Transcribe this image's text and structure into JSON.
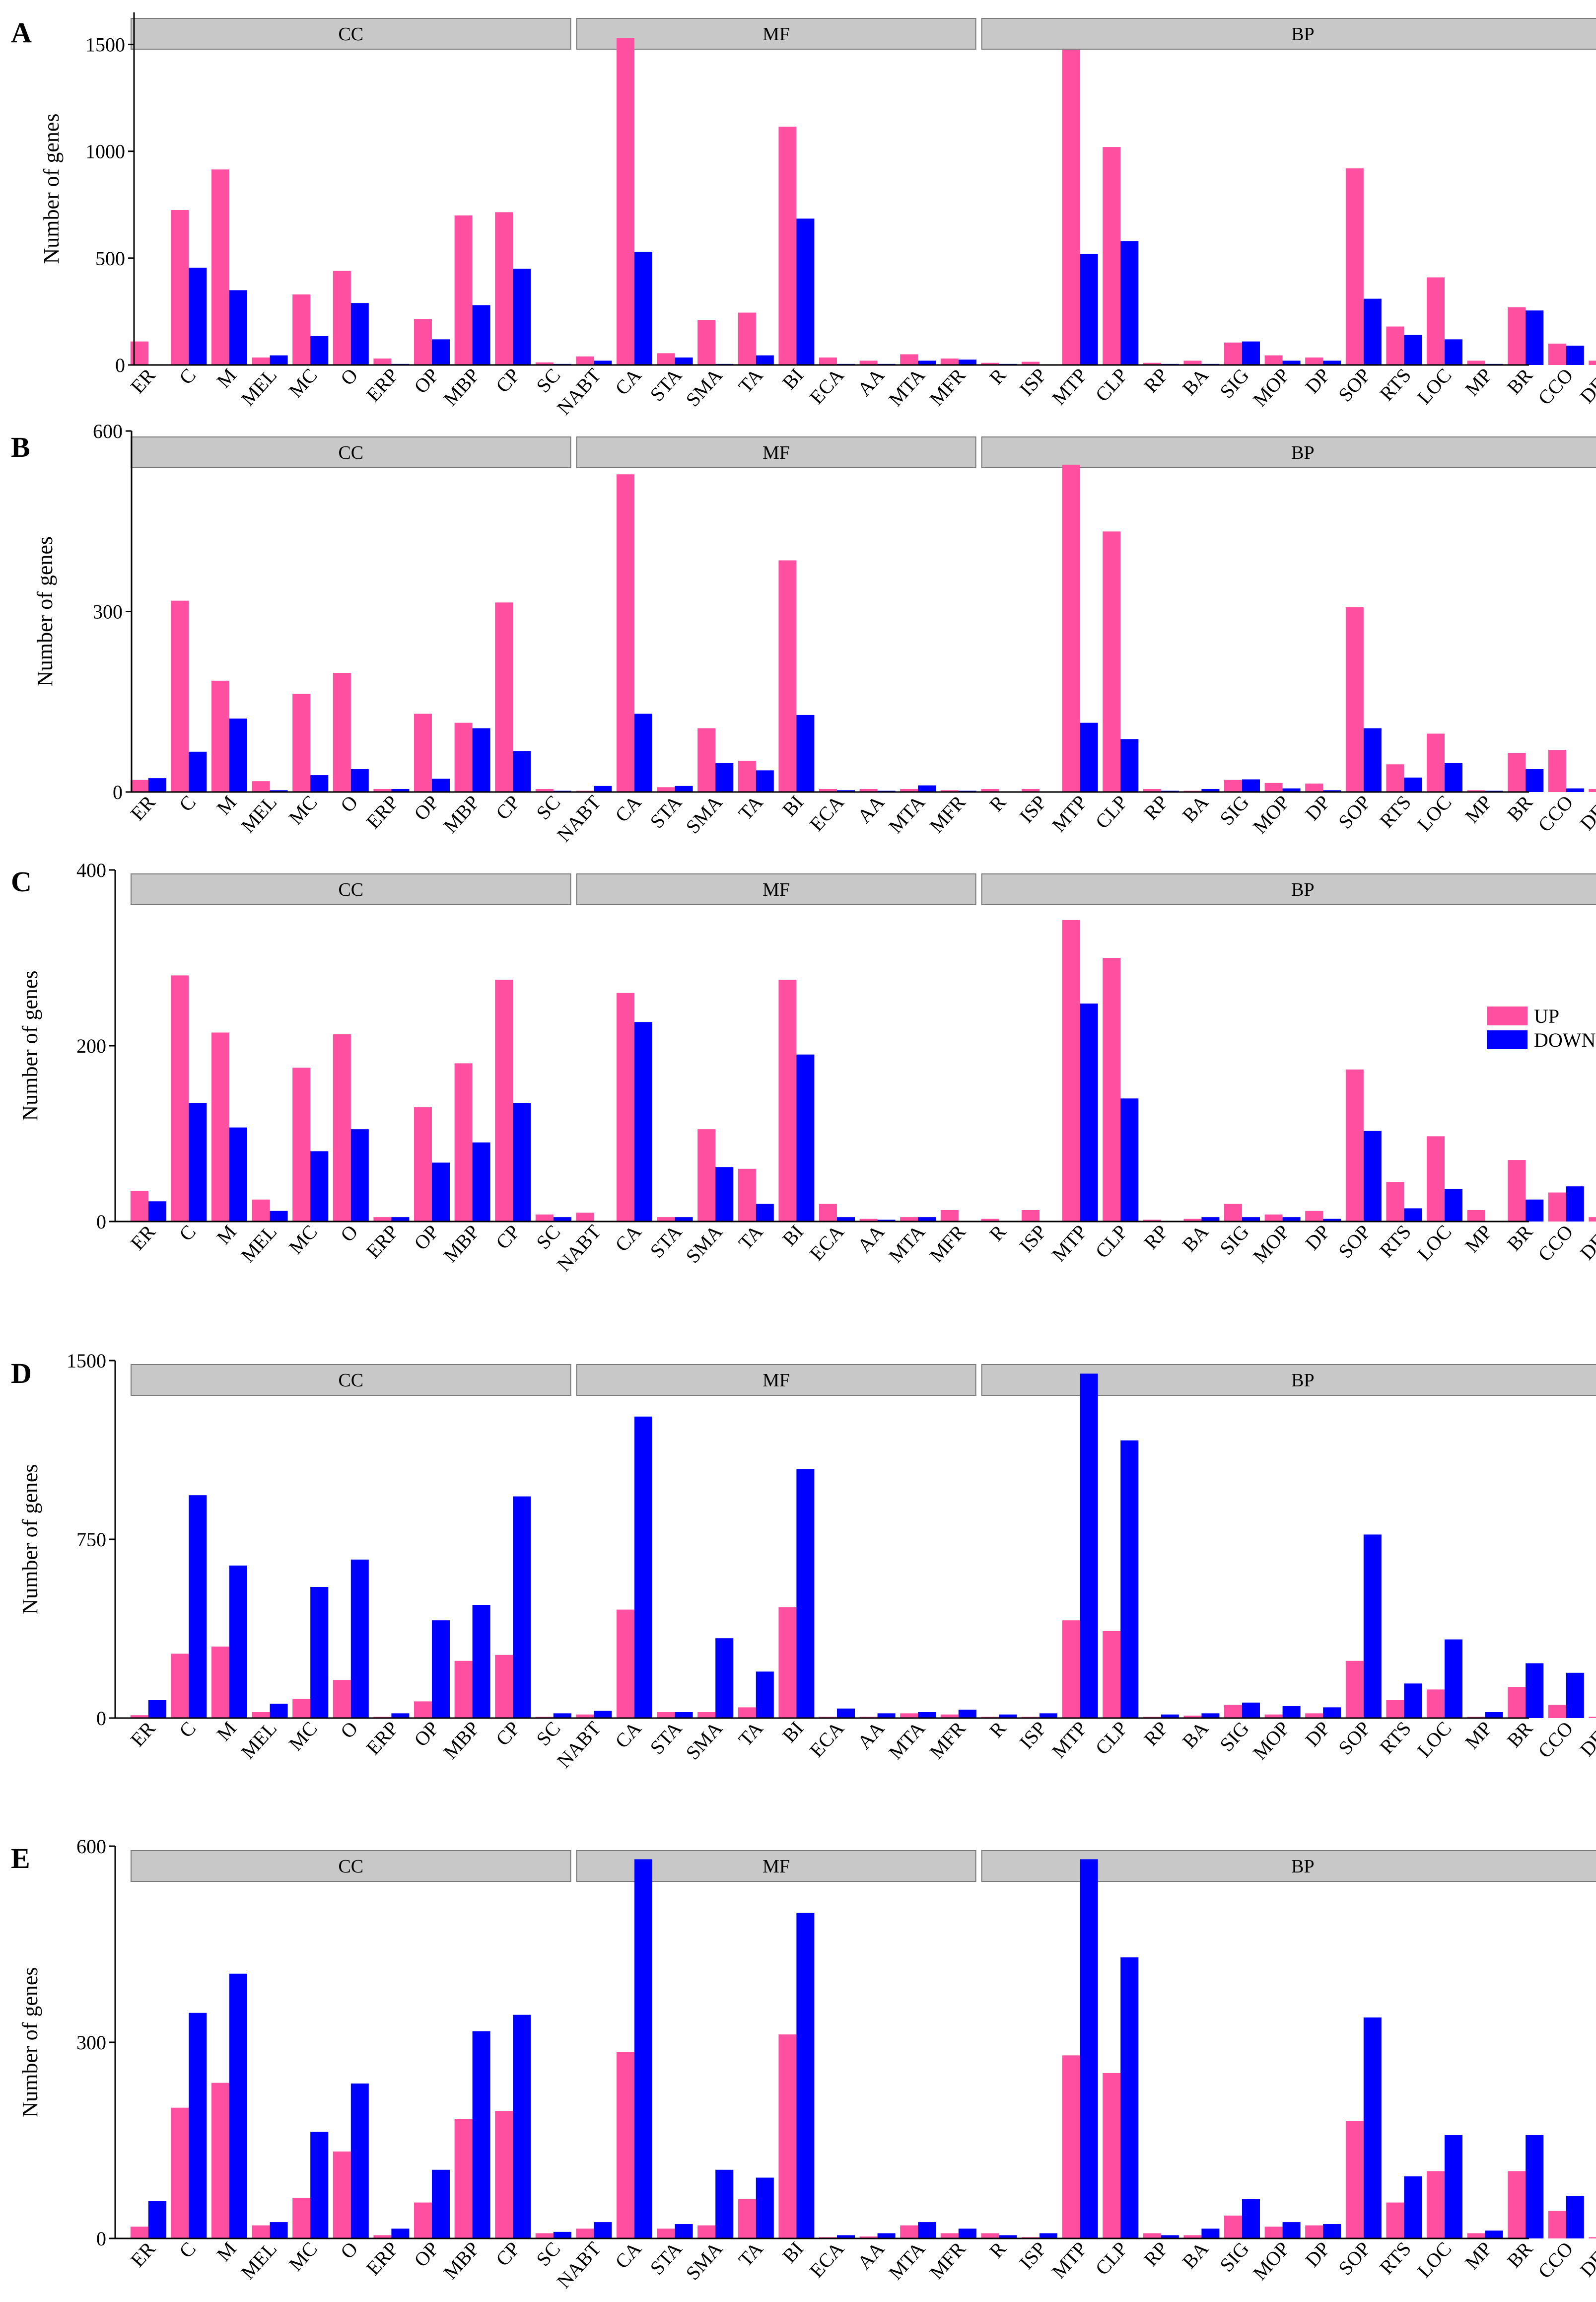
{
  "figure": {
    "ylabel": "Number of genes",
    "legend": {
      "up_label": "UP",
      "down_label": "DOWN",
      "placement": "right of panel C"
    },
    "colors": {
      "up": "#ff4fa0",
      "down": "#0000ff",
      "group_box": "#c8c8c8"
    },
    "groups": [
      {
        "name": "CC",
        "first": "ER",
        "last": "SC"
      },
      {
        "name": "MF",
        "first": "NABT",
        "last": "MFR"
      },
      {
        "name": "BP",
        "first": "R",
        "last": "DET"
      }
    ]
  },
  "chart_data": [
    {
      "type": "bar",
      "panel": "A",
      "ylim": [
        0,
        1650
      ],
      "yticks": [
        0,
        500,
        1000,
        1500
      ],
      "categories": [
        "ER",
        "C",
        "M",
        "MEL",
        "MC",
        "O",
        "ERP",
        "OP",
        "MBP",
        "CP",
        "SC",
        "NABT",
        "CA",
        "STA",
        "SMA",
        "TA",
        "BI",
        "ECA",
        "AA",
        "MTA",
        "MFR",
        "R",
        "ISP",
        "MTP",
        "CLP",
        "RP",
        "BA",
        "SIG",
        "MOP",
        "DP",
        "SOP",
        "RTS",
        "LOC",
        "MP",
        "BR",
        "CCO",
        "DET"
      ],
      "series": [
        {
          "name": "UP",
          "values": [
            110,
            725,
            915,
            35,
            330,
            440,
            30,
            215,
            700,
            715,
            12,
            40,
            1530,
            55,
            210,
            245,
            1115,
            35,
            20,
            50,
            30,
            10,
            15,
            1475,
            1020,
            10,
            20,
            105,
            45,
            35,
            920,
            180,
            410,
            20,
            270,
            100,
            20
          ]
        },
        {
          "name": "DOWN",
          "values": [
            0,
            455,
            350,
            45,
            135,
            290,
            5,
            120,
            280,
            450,
            5,
            20,
            530,
            35,
            5,
            45,
            685,
            5,
            5,
            20,
            25,
            5,
            0,
            520,
            580,
            5,
            5,
            110,
            20,
            20,
            310,
            140,
            120,
            5,
            255,
            90,
            5
          ]
        }
      ]
    },
    {
      "type": "bar",
      "panel": "B",
      "ylim": [
        0,
        600
      ],
      "yticks": [
        0,
        300,
        600
      ],
      "categories": [
        "ER",
        "C",
        "M",
        "MEL",
        "MC",
        "O",
        "ERP",
        "OP",
        "MBP",
        "CP",
        "SC",
        "NABT",
        "CA",
        "STA",
        "SMA",
        "TA",
        "BI",
        "ECA",
        "AA",
        "MTA",
        "MFR",
        "R",
        "ISP",
        "MTP",
        "CLP",
        "RP",
        "BA",
        "SIG",
        "MOP",
        "DP",
        "SOP",
        "RTS",
        "LOC",
        "MP",
        "BR",
        "CCO",
        "DET"
      ],
      "series": [
        {
          "name": "UP",
          "values": [
            20,
            318,
            185,
            18,
            163,
            198,
            5,
            130,
            115,
            315,
            5,
            2,
            528,
            8,
            106,
            52,
            385,
            5,
            5,
            5,
            3,
            5,
            5,
            544,
            433,
            5,
            2,
            20,
            15,
            14,
            307,
            46,
            97,
            3,
            65,
            70,
            5
          ]
        },
        {
          "name": "DOWN",
          "values": [
            23,
            67,
            122,
            3,
            28,
            38,
            5,
            22,
            106,
            68,
            2,
            10,
            130,
            10,
            48,
            36,
            128,
            3,
            2,
            11,
            2,
            0,
            0,
            115,
            88,
            2,
            5,
            21,
            6,
            3,
            106,
            24,
            48,
            2,
            38,
            6,
            3
          ]
        }
      ]
    },
    {
      "type": "bar",
      "panel": "C",
      "ylim": [
        0,
        400
      ],
      "yticks": [
        0,
        200,
        400
      ],
      "categories": [
        "ER",
        "C",
        "M",
        "MEL",
        "MC",
        "O",
        "ERP",
        "OP",
        "MBP",
        "CP",
        "SC",
        "NABT",
        "CA",
        "STA",
        "SMA",
        "TA",
        "BI",
        "ECA",
        "AA",
        "MTA",
        "MFR",
        "R",
        "ISP",
        "MTP",
        "CLP",
        "RP",
        "BA",
        "SIG",
        "MOP",
        "DP",
        "SOP",
        "RTS",
        "LOC",
        "MP",
        "BR",
        "CCO",
        "DET"
      ],
      "series": [
        {
          "name": "UP",
          "values": [
            35,
            280,
            215,
            25,
            175,
            213,
            5,
            130,
            180,
            275,
            8,
            10,
            260,
            5,
            105,
            60,
            275,
            20,
            3,
            5,
            13,
            3,
            13,
            343,
            300,
            2,
            3,
            20,
            8,
            12,
            173,
            45,
            97,
            13,
            70,
            33,
            5
          ]
        },
        {
          "name": "DOWN",
          "values": [
            23,
            135,
            107,
            12,
            80,
            105,
            5,
            67,
            90,
            135,
            5,
            0,
            227,
            5,
            62,
            20,
            190,
            5,
            2,
            5,
            0,
            0,
            0,
            248,
            140,
            0,
            5,
            5,
            5,
            3,
            103,
            15,
            37,
            0,
            25,
            40,
            2
          ]
        }
      ]
    },
    {
      "type": "bar",
      "panel": "D",
      "ylim": [
        0,
        1500
      ],
      "yticks": [
        0,
        750,
        1500
      ],
      "categories": [
        "ER",
        "C",
        "M",
        "MEL",
        "MC",
        "O",
        "ERP",
        "OP",
        "MBP",
        "CP",
        "SC",
        "NABT",
        "CA",
        "STA",
        "SMA",
        "TA",
        "BI",
        "ECA",
        "AA",
        "MTA",
        "MFR",
        "R",
        "ISP",
        "MTP",
        "CLP",
        "RP",
        "BA",
        "SIG",
        "MOP",
        "DP",
        "SOP",
        "RTS",
        "LOC",
        "MP",
        "BR",
        "CCO",
        "DET"
      ],
      "series": [
        {
          "name": "UP",
          "values": [
            12,
            270,
            300,
            25,
            80,
            160,
            5,
            70,
            240,
            265,
            5,
            15,
            455,
            25,
            25,
            45,
            465,
            5,
            5,
            20,
            15,
            5,
            5,
            410,
            365,
            5,
            10,
            55,
            15,
            20,
            240,
            75,
            120,
            5,
            130,
            55,
            5
          ]
        },
        {
          "name": "DOWN",
          "values": [
            75,
            935,
            640,
            60,
            550,
            665,
            20,
            410,
            475,
            930,
            20,
            30,
            1265,
            25,
            335,
            195,
            1045,
            40,
            20,
            25,
            35,
            15,
            20,
            1445,
            1165,
            15,
            20,
            65,
            50,
            45,
            770,
            145,
            330,
            25,
            230,
            190,
            15
          ]
        }
      ]
    },
    {
      "type": "bar",
      "panel": "E",
      "ylim": [
        0,
        600
      ],
      "yticks": [
        0,
        300,
        600
      ],
      "categories": [
        "ER",
        "C",
        "M",
        "MEL",
        "MC",
        "O",
        "ERP",
        "OP",
        "MBP",
        "CP",
        "SC",
        "NABT",
        "CA",
        "STA",
        "SMA",
        "TA",
        "BI",
        "ECA",
        "AA",
        "MTA",
        "MFR",
        "R",
        "ISP",
        "MTP",
        "CLP",
        "RP",
        "BA",
        "SIG",
        "MOP",
        "DP",
        "SOP",
        "RTS",
        "LOC",
        "MP",
        "BR",
        "CCO",
        "DET"
      ],
      "series": [
        {
          "name": "UP",
          "values": [
            18,
            200,
            238,
            20,
            62,
            133,
            5,
            55,
            183,
            195,
            8,
            15,
            285,
            15,
            20,
            60,
            312,
            2,
            3,
            20,
            8,
            8,
            2,
            280,
            253,
            8,
            5,
            35,
            18,
            20,
            180,
            55,
            103,
            8,
            103,
            42,
            2
          ]
        },
        {
          "name": "DOWN",
          "values": [
            57,
            345,
            405,
            25,
            163,
            237,
            15,
            105,
            317,
            342,
            10,
            25,
            580,
            22,
            105,
            93,
            498,
            5,
            8,
            25,
            15,
            5,
            8,
            580,
            430,
            5,
            15,
            60,
            25,
            22,
            338,
            95,
            158,
            12,
            158,
            65,
            12
          ]
        }
      ]
    }
  ]
}
